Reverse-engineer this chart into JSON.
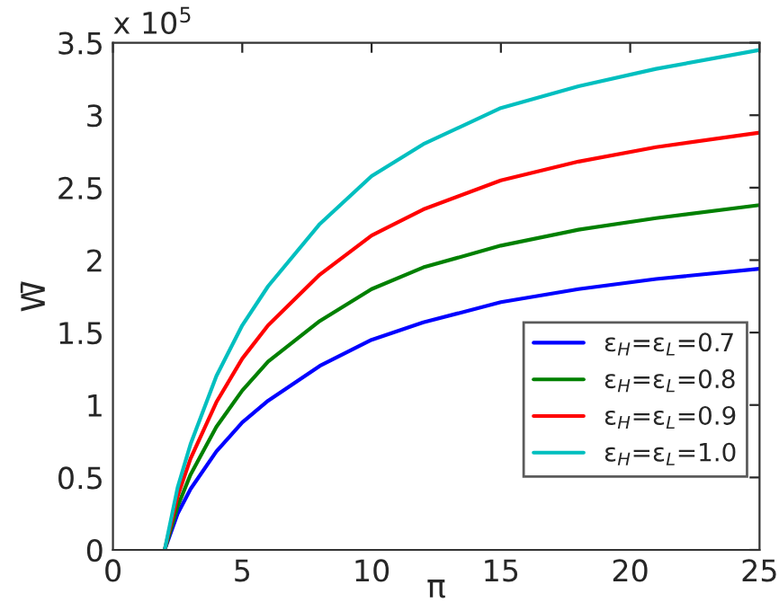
{
  "chart_data": {
    "type": "line",
    "xlabel": "π",
    "ylabel": "W̄",
    "annotations": [
      "x 10$^{5}$"
    ],
    "x": [
      2,
      2.5,
      3,
      4,
      5,
      6,
      8,
      10,
      12,
      15,
      18,
      21,
      25
    ],
    "series": [
      {
        "name": "ε$_{H}$=ε$_{L}$=0.7",
        "color": "#0000ff",
        "values": [
          0,
          0.25,
          0.42,
          0.68,
          0.88,
          1.03,
          1.27,
          1.45,
          1.57,
          1.71,
          1.8,
          1.87,
          1.94
        ]
      },
      {
        "name": "ε$_{H}$=ε$_{L}$=0.8",
        "color": "#008000",
        "values": [
          0,
          0.3,
          0.52,
          0.85,
          1.1,
          1.3,
          1.58,
          1.8,
          1.95,
          2.1,
          2.21,
          2.29,
          2.38
        ]
      },
      {
        "name": "ε$_{H}$=ε$_{L}$=0.9",
        "color": "#ff0000",
        "values": [
          0,
          0.37,
          0.63,
          1.02,
          1.32,
          1.55,
          1.9,
          2.17,
          2.35,
          2.55,
          2.68,
          2.78,
          2.88
        ]
      },
      {
        "name": "ε$_{H}$=ε$_{L}$=1.0",
        "color": "#00bfbf",
        "values": [
          0,
          0.43,
          0.73,
          1.2,
          1.55,
          1.82,
          2.25,
          2.58,
          2.8,
          3.05,
          3.2,
          3.32,
          3.45
        ]
      }
    ],
    "xlim": [
      0,
      25
    ],
    "xticks": [
      0,
      5,
      10,
      15,
      20,
      25
    ],
    "ylim": [
      0,
      3.5
    ],
    "yticks": [
      0,
      0.5,
      1,
      1.5,
      2,
      2.5,
      3,
      3.5
    ],
    "grid": false,
    "legend": "bottom right",
    "marker": "none",
    "line_style": "solid"
  }
}
